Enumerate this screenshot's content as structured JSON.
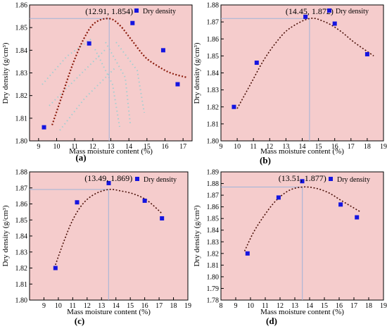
{
  "chart_data": [
    {
      "type": "scatter",
      "panel_label": "(a)",
      "xlabel": "Mass moisture content (%)",
      "ylabel": "Dry density (g/cm³)",
      "xlim": [
        8.5,
        17.5
      ],
      "ylim": [
        1.8,
        1.86
      ],
      "xticks": [
        9,
        10,
        11,
        12,
        13,
        14,
        15,
        16,
        17
      ],
      "yticks": [
        1.8,
        1.81,
        1.82,
        1.83,
        1.84,
        1.85,
        1.86
      ],
      "legend": "Dry density",
      "legend_position": "top-right",
      "points": [
        [
          9.3,
          1.806
        ],
        [
          11.8,
          1.843
        ],
        [
          14.2,
          1.852
        ],
        [
          15.9,
          1.84
        ],
        [
          16.7,
          1.825
        ]
      ],
      "peak": [
        12.91,
        1.854
      ],
      "peak_label": "(12.91, 1.854)",
      "fit": [
        [
          9.75,
          1.807
        ],
        [
          10.3,
          1.82
        ],
        [
          10.9,
          1.834
        ],
        [
          11.5,
          1.845
        ],
        [
          12.1,
          1.852
        ],
        [
          12.91,
          1.854
        ],
        [
          13.5,
          1.851
        ],
        [
          14.2,
          1.844
        ],
        [
          14.9,
          1.837
        ],
        [
          15.6,
          1.833
        ],
        [
          16.3,
          1.83
        ],
        [
          17.2,
          1.828
        ]
      ]
    },
    {
      "type": "scatter",
      "panel_label": "(b)",
      "xlabel": "Mass moisture content (%)",
      "ylabel": "Dry density (g/cm³)",
      "xlim": [
        9,
        19
      ],
      "ylim": [
        1.8,
        1.88
      ],
      "xticks": [
        9,
        10,
        11,
        12,
        13,
        14,
        15,
        16,
        17,
        18,
        19
      ],
      "yticks": [
        1.8,
        1.81,
        1.82,
        1.83,
        1.84,
        1.85,
        1.86,
        1.87,
        1.88
      ],
      "legend": "Dry density",
      "legend_position": "top-right",
      "points": [
        [
          9.8,
          1.82
        ],
        [
          11.2,
          1.846
        ],
        [
          14.2,
          1.873
        ],
        [
          16.0,
          1.869
        ],
        [
          18.0,
          1.851
        ]
      ],
      "peak": [
        14.45,
        1.872
      ],
      "peak_label": "(14.45, 1.872)",
      "fit": [
        [
          10.0,
          1.819
        ],
        [
          10.8,
          1.833
        ],
        [
          11.6,
          1.847
        ],
        [
          12.4,
          1.858
        ],
        [
          13.2,
          1.866
        ],
        [
          14.45,
          1.872
        ],
        [
          15.4,
          1.87
        ],
        [
          16.3,
          1.865
        ],
        [
          17.2,
          1.858
        ],
        [
          18.4,
          1.85
        ]
      ]
    },
    {
      "type": "scatter",
      "panel_label": "(c)",
      "xlabel": "Mass moisture content (%)",
      "ylabel": "Dry density (g/cm³)",
      "xlim": [
        8,
        19
      ],
      "ylim": [
        1.8,
        1.88
      ],
      "xticks": [
        9,
        10,
        11,
        12,
        13,
        14,
        15,
        16,
        17,
        18,
        19
      ],
      "yticks": [
        1.8,
        1.81,
        1.82,
        1.83,
        1.84,
        1.85,
        1.86,
        1.87,
        1.88
      ],
      "legend": "Dry density",
      "legend_position": "top-right",
      "points": [
        [
          9.8,
          1.82
        ],
        [
          11.3,
          1.861
        ],
        [
          13.5,
          1.873
        ],
        [
          16.0,
          1.862
        ],
        [
          17.2,
          1.851
        ]
      ],
      "peak": [
        13.49,
        1.869
      ],
      "peak_label": "(13.49, 1.869)",
      "fit": [
        [
          9.8,
          1.822
        ],
        [
          10.4,
          1.837
        ],
        [
          11.0,
          1.85
        ],
        [
          11.7,
          1.86
        ],
        [
          12.5,
          1.866
        ],
        [
          13.49,
          1.869
        ],
        [
          14.4,
          1.868
        ],
        [
          15.3,
          1.866
        ],
        [
          16.2,
          1.862
        ],
        [
          17.2,
          1.854
        ]
      ]
    },
    {
      "type": "scatter",
      "panel_label": "(d)",
      "xlabel": "Mass moisture content (%)",
      "ylabel": "Dry density (g/cm³)",
      "xlim": [
        8,
        19
      ],
      "ylim": [
        1.78,
        1.89
      ],
      "xticks": [
        8,
        9,
        10,
        11,
        12,
        13,
        14,
        15,
        16,
        17,
        18,
        19
      ],
      "yticks": [
        1.78,
        1.79,
        1.8,
        1.81,
        1.82,
        1.83,
        1.84,
        1.85,
        1.86,
        1.87,
        1.88,
        1.89
      ],
      "legend": "Dry density",
      "legend_position": "top-right",
      "points": [
        [
          9.8,
          1.82
        ],
        [
          11.9,
          1.868
        ],
        [
          13.5,
          1.882
        ],
        [
          16.1,
          1.862
        ],
        [
          17.2,
          1.851
        ]
      ],
      "peak": [
        13.51,
        1.877
      ],
      "peak_label": "(13.51, 1.877)",
      "fit": [
        [
          9.6,
          1.822
        ],
        [
          10.2,
          1.838
        ],
        [
          10.9,
          1.852
        ],
        [
          11.7,
          1.865
        ],
        [
          12.6,
          1.874
        ],
        [
          13.51,
          1.877
        ],
        [
          14.4,
          1.876
        ],
        [
          15.3,
          1.872
        ],
        [
          16.2,
          1.865
        ],
        [
          17.4,
          1.856
        ]
      ]
    }
  ],
  "colors": {
    "background": "#f5cccc",
    "point": "#1515e0",
    "fit_a": "#8a1a0a",
    "fit": "#4a1008",
    "guide": "#9fb3d8",
    "watermark": "#7fd0d4"
  }
}
